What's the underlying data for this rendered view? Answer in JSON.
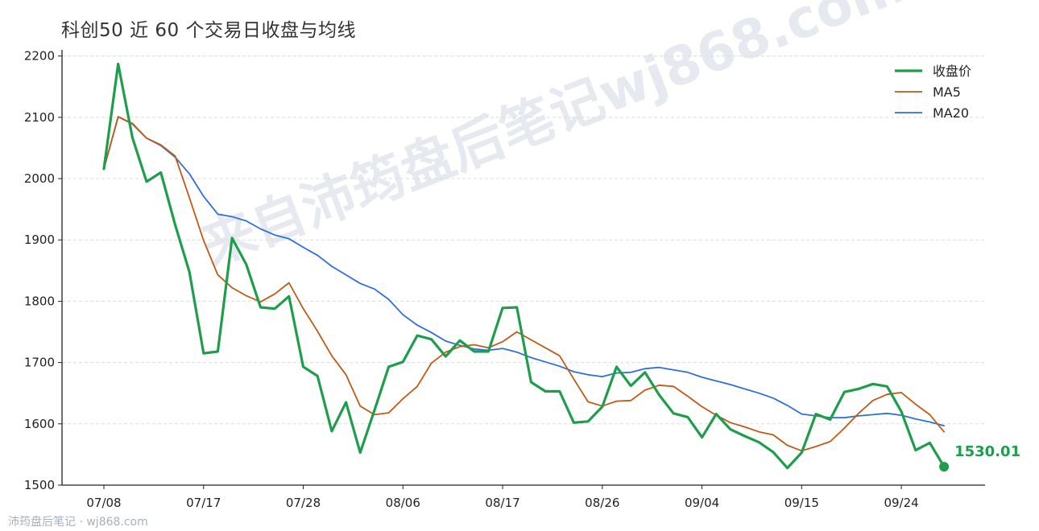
{
  "title": "科创50 近 60 个交易日收盘与均线",
  "watermark_big": "来自沛筠盘后笔记wj868.com",
  "watermark_footer": "沛筠盘后笔记 · wj868.com",
  "chart_data": {
    "type": "line",
    "title": "科创50 近 60 个交易日收盘与均线",
    "xlabel": "",
    "ylabel": "",
    "x_tick_labels": [
      "07/08",
      "07/17",
      "07/28",
      "08/06",
      "08/17",
      "08/26",
      "09/04",
      "09/15",
      "09/24"
    ],
    "x_tick_indices": [
      0,
      7,
      14,
      21,
      28,
      35,
      42,
      49,
      56
    ],
    "ylim": [
      1500,
      2210
    ],
    "y_ticks": [
      1500,
      1600,
      1700,
      1800,
      1900,
      2000,
      2100,
      2200
    ],
    "grid": "horizontal dashed",
    "legend_position": "top-right",
    "last_value_label": "1530.01",
    "series": [
      {
        "name": "收盘价",
        "color": "#1e9e4a",
        "values": [
          2016,
          2187,
          2067,
          1995,
          2010,
          1925,
          1848,
          1715,
          1718,
          1903,
          1860,
          1790,
          1788,
          1808,
          1693,
          1678,
          1588,
          1635,
          1553,
          1622,
          1693,
          1701,
          1744,
          1738,
          1710,
          1736,
          1718,
          1718,
          1789,
          1790,
          1668,
          1653,
          1653,
          1602,
          1604,
          1628,
          1693,
          1662,
          1684,
          1647,
          1617,
          1611,
          1578,
          1616,
          1591,
          1580,
          1570,
          1554,
          1528,
          1553,
          1616,
          1607,
          1652,
          1657,
          1665,
          1661,
          1620,
          1557,
          1569,
          1530.01
        ]
      },
      {
        "name": "MA5",
        "color": "#c05a14",
        "values": [
          2016,
          2101,
          2090,
          2066,
          2055,
          2037,
          1969,
          1899,
          1843,
          1822,
          1809,
          1799,
          1812,
          1830,
          1788,
          1751,
          1711,
          1680,
          1629,
          1615,
          1618,
          1641,
          1661,
          1699,
          1717,
          1726,
          1729,
          1724,
          1734,
          1750,
          1737,
          1724,
          1711,
          1673,
          1636,
          1629,
          1637,
          1638,
          1655,
          1663,
          1661,
          1645,
          1628,
          1614,
          1602,
          1595,
          1587,
          1582,
          1565,
          1556,
          1563,
          1571,
          1593,
          1617,
          1638,
          1648,
          1651,
          1632,
          1615,
          1587
        ]
      },
      {
        "name": "MA20",
        "color": "#2f6fdc",
        "values": [
          2016,
          2101,
          2089,
          2066,
          2054,
          2035,
          2008,
          1971,
          1942,
          1938,
          1931,
          1918,
          1908,
          1902,
          1888,
          1875,
          1857,
          1843,
          1829,
          1820,
          1803,
          1778,
          1761,
          1749,
          1735,
          1728,
          1722,
          1720,
          1723,
          1717,
          1708,
          1701,
          1694,
          1685,
          1680,
          1677,
          1683,
          1684,
          1690,
          1692,
          1688,
          1684,
          1676,
          1670,
          1664,
          1657,
          1650,
          1642,
          1630,
          1616,
          1613,
          1610,
          1610,
          1613,
          1615,
          1617,
          1614,
          1608,
          1603,
          1597
        ]
      }
    ]
  }
}
